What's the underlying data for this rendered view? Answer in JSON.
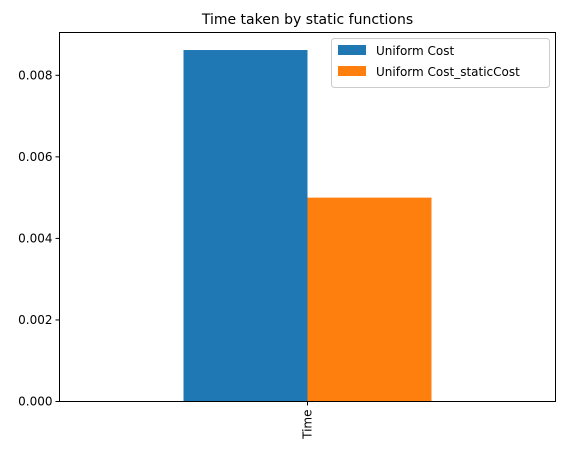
{
  "chart_data": {
    "type": "bar",
    "title": "Time taken by static functions",
    "categories": [
      "Time"
    ],
    "series": [
      {
        "name": "Uniform Cost",
        "values": [
          0.00862
        ],
        "color": "#1f77b4"
      },
      {
        "name": "Uniform Cost_staticCost",
        "values": [
          0.005
        ],
        "color": "#ff7f0e"
      }
    ],
    "xlabel": "",
    "ylabel": "",
    "ylim": [
      0,
      0.00905
    ],
    "yticks": [
      0.0,
      0.002,
      0.004,
      0.006,
      0.008
    ],
    "ytick_labels": [
      "0.000",
      "0.002",
      "0.004",
      "0.006",
      "0.008"
    ],
    "grid": false,
    "legend": "top-right"
  }
}
